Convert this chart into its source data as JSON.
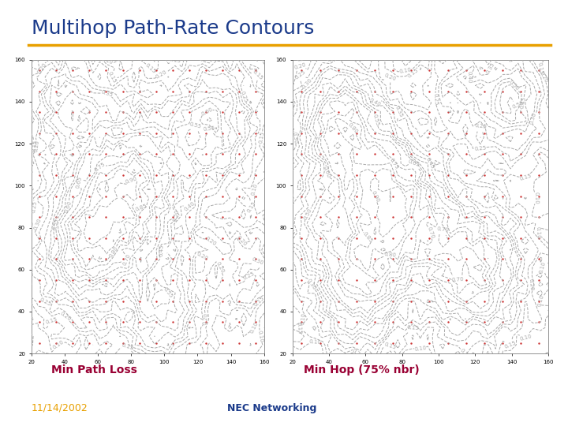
{
  "title": "Multihop Path-Rate Contours",
  "title_color": "#1a3a8a",
  "title_fontsize": 18,
  "title_fontstyle": "normal",
  "separator_color": "#e8a000",
  "separator_linewidth": 2.5,
  "label_left": "Min Path Loss",
  "label_right": "Min Hop (75% nbr)",
  "label_color": "#990033",
  "label_fontsize": 10,
  "label_fontstyle": "bold",
  "footer_date": "11/14/2002",
  "footer_center": "NEC Networking",
  "footer_color_date": "#e8a000",
  "footer_color_center": "#1a3a8a",
  "footer_fontsize": 9,
  "background_color": "#ffffff",
  "contour_color": "#aaaaaa",
  "dot_color": "#cc3333",
  "dot_size": 3,
  "contour_linewidth": 0.7,
  "contour_linestyle": "--",
  "label_fontsize_contour": 5,
  "axis_bg": "#ffffff"
}
